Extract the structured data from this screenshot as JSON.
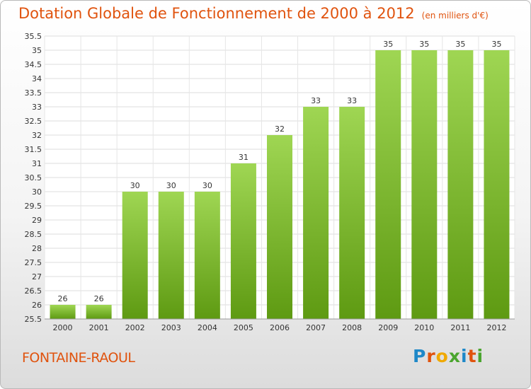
{
  "header": {
    "title": "Dotation Globale de Fonctionnement de 2000 à 2012",
    "subtitle": "(en milliers d'€)"
  },
  "footer": {
    "commune": "FONTAINE-RAOUL",
    "logo_text": "Proxiti"
  },
  "colors": {
    "title": "#e0530e",
    "bar_top": "#9fd653",
    "bar_bottom": "#5e9a12"
  },
  "chart_data": {
    "type": "bar",
    "title": "Dotation Globale de Fonctionnement de 2000 à 2012",
    "subtitle": "(en milliers d'€)",
    "categories": [
      "2000",
      "2001",
      "2002",
      "2003",
      "2004",
      "2005",
      "2006",
      "2007",
      "2008",
      "2009",
      "2010",
      "2011",
      "2012"
    ],
    "values": [
      26,
      26,
      30,
      30,
      30,
      31,
      32,
      33,
      33,
      35,
      35,
      35,
      35
    ],
    "value_labels": [
      "26",
      "26",
      "30",
      "30",
      "30",
      "31",
      "32",
      "33",
      "33",
      "35",
      "35",
      "35",
      "35"
    ],
    "ylim": [
      25.5,
      35.5
    ],
    "yticks": [
      25.5,
      26,
      26.5,
      27,
      27.5,
      28,
      28.5,
      29,
      29.5,
      30,
      30.5,
      31,
      31.5,
      32,
      32.5,
      33,
      33.5,
      34,
      34.5,
      35,
      35.5
    ],
    "grid": true
  }
}
